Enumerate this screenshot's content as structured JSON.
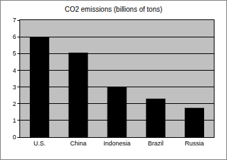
{
  "chart_data": {
    "type": "bar",
    "title": "CO2 emissions (billions of tons)",
    "categories": [
      "U.S.",
      "China",
      "Indonesia",
      "Brazil",
      "Russia"
    ],
    "values": [
      6.0,
      5.05,
      3.0,
      2.3,
      1.75
    ],
    "color": "#000000",
    "ylim": [
      0,
      7
    ],
    "yticks": [
      0,
      1,
      2,
      3,
      4,
      5,
      6,
      7
    ],
    "grid": true
  }
}
